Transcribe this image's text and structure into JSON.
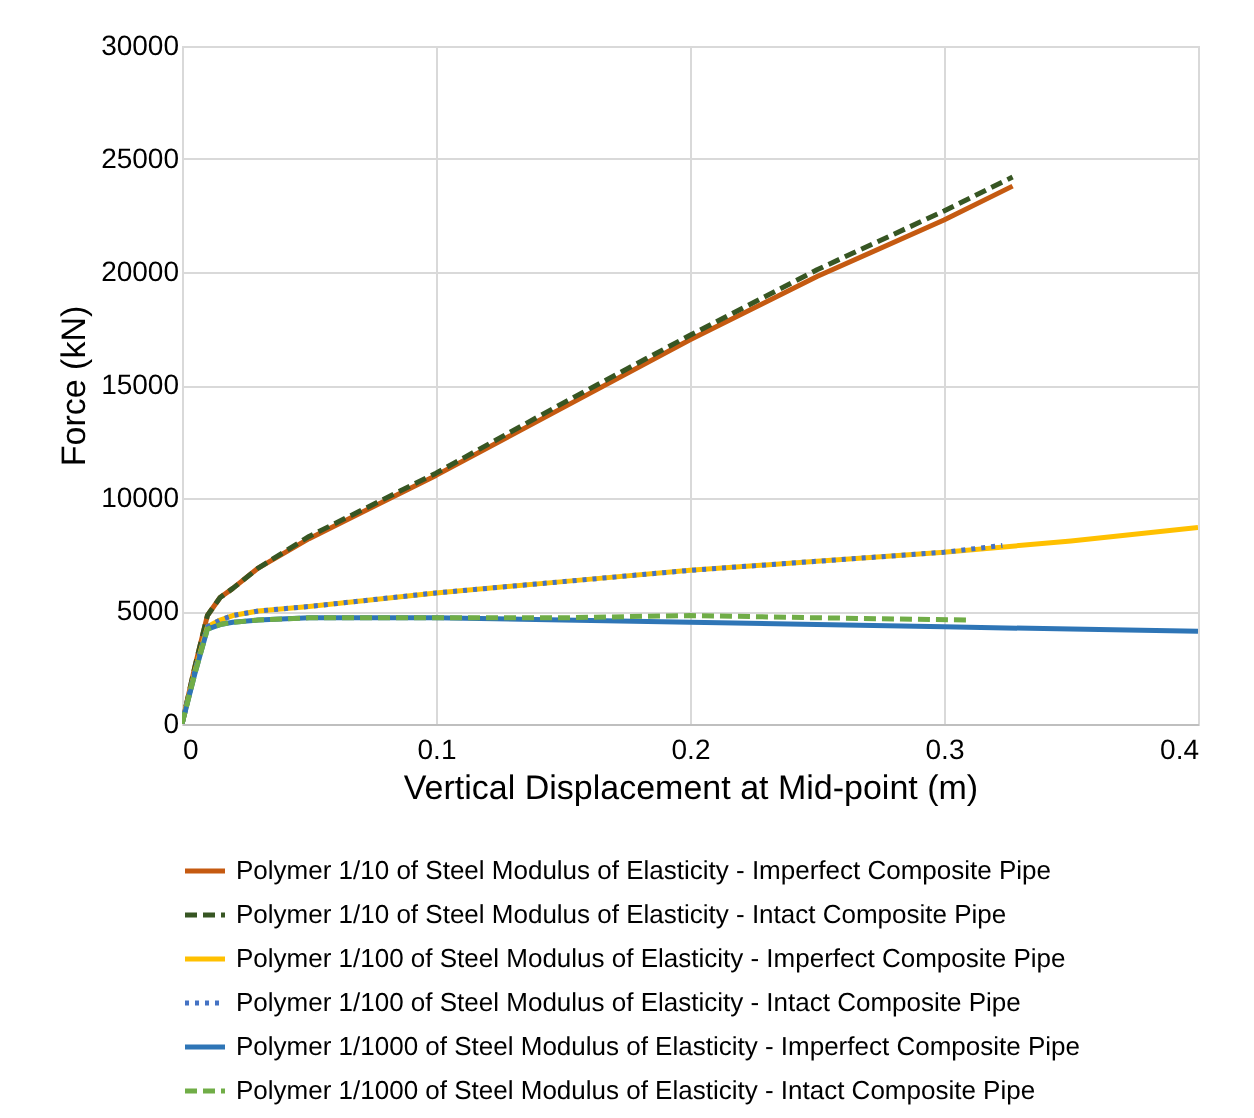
{
  "chart_data": {
    "type": "line",
    "xlabel": "Vertical Displacement at Mid-point (m)",
    "ylabel": "Force (kN)",
    "xlim": [
      0,
      0.4
    ],
    "xticks": [
      0,
      0.1,
      0.2,
      0.3,
      0.4
    ],
    "ylim": [
      0,
      30000
    ],
    "yticks": [
      0,
      5000,
      10000,
      15000,
      20000,
      25000,
      30000
    ],
    "grid": true,
    "legend": "bottom",
    "marker": "none",
    "series": [
      {
        "name": "Polymer 1/10 of Steel Modulus of Elasticity - Imperfect Composite Pipe",
        "color": "#c55a11",
        "line_style": "solid",
        "x": [
          0,
          0.005,
          0.01,
          0.015,
          0.02,
          0.03,
          0.05,
          0.1,
          0.15,
          0.2,
          0.25,
          0.3,
          0.327
        ],
        "values": [
          0,
          2500,
          4800,
          5600,
          6000,
          6900,
          8200,
          11000,
          14000,
          17000,
          19800,
          22300,
          23800
        ]
      },
      {
        "name": "Polymer 1/10 of Steel Modulus of Elasticity - Intact Composite Pipe",
        "color": "#375623",
        "line_style": "dashed",
        "x": [
          0,
          0.005,
          0.01,
          0.015,
          0.02,
          0.03,
          0.05,
          0.1,
          0.15,
          0.2,
          0.25,
          0.3,
          0.327
        ],
        "values": [
          0,
          2500,
          4800,
          5600,
          6000,
          6900,
          8300,
          11100,
          14200,
          17200,
          20100,
          22700,
          24200
        ]
      },
      {
        "name": "Polymer 1/100 of Steel Modulus of Elasticity - Imperfect Composite Pipe",
        "color": "#ffc000",
        "line_style": "solid",
        "x": [
          0,
          0.005,
          0.01,
          0.015,
          0.02,
          0.03,
          0.05,
          0.1,
          0.15,
          0.2,
          0.25,
          0.3,
          0.35,
          0.4
        ],
        "values": [
          0,
          2300,
          4300,
          4600,
          4800,
          5000,
          5200,
          5800,
          6300,
          6800,
          7200,
          7600,
          8100,
          8700
        ]
      },
      {
        "name": "Polymer 1/100 of Steel Modulus of Elasticity - Intact Composite Pipe",
        "color": "#4472c4",
        "line_style": "dotted",
        "x": [
          0,
          0.005,
          0.01,
          0.015,
          0.02,
          0.03,
          0.05,
          0.1,
          0.15,
          0.2,
          0.25,
          0.3,
          0.323
        ],
        "values": [
          0,
          2300,
          4300,
          4600,
          4800,
          5000,
          5200,
          5800,
          6300,
          6800,
          7200,
          7600,
          7900
        ]
      },
      {
        "name": "Polymer 1/1000 of Steel Modulus of Elasticity - Imperfect Composite Pipe",
        "color": "#2e75b6",
        "line_style": "solid",
        "x": [
          0,
          0.005,
          0.01,
          0.015,
          0.02,
          0.03,
          0.05,
          0.1,
          0.15,
          0.2,
          0.25,
          0.3,
          0.35,
          0.4
        ],
        "values": [
          0,
          2200,
          4200,
          4400,
          4500,
          4600,
          4700,
          4700,
          4600,
          4500,
          4400,
          4300,
          4200,
          4100
        ]
      },
      {
        "name": "Polymer 1/1000 of Steel Modulus of Elasticity - Intact Composite Pipe",
        "color": "#70ad47",
        "line_style": "dashed",
        "x": [
          0,
          0.005,
          0.01,
          0.015,
          0.02,
          0.03,
          0.05,
          0.1,
          0.15,
          0.2,
          0.25,
          0.31
        ],
        "values": [
          0,
          2200,
          4200,
          4400,
          4500,
          4600,
          4700,
          4700,
          4700,
          4800,
          4700,
          4600
        ]
      }
    ]
  }
}
